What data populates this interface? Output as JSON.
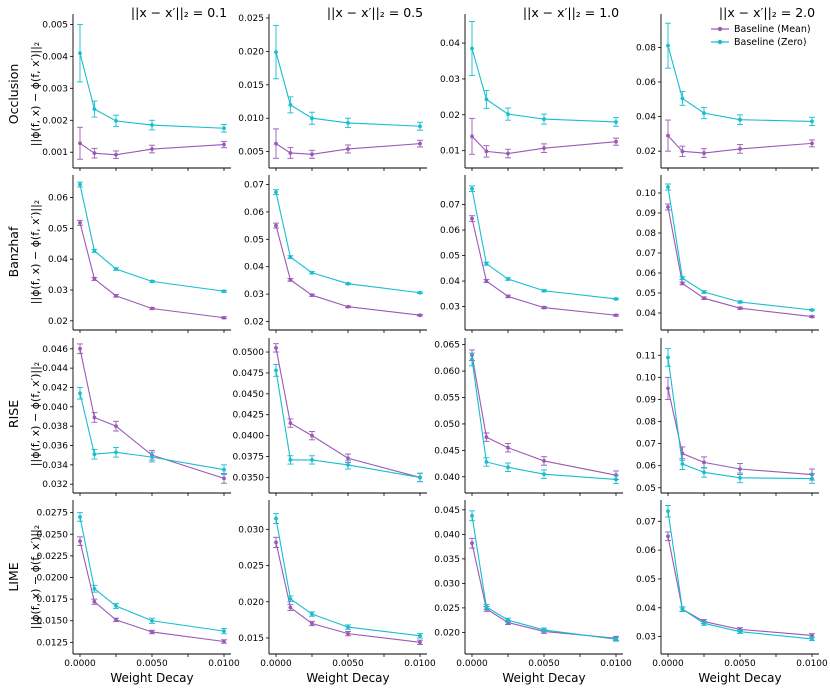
{
  "figure": {
    "colors": {
      "mean": "#9b59b6",
      "zero": "#17becf"
    },
    "legend": {
      "placement": "top-right",
      "entries": [
        "Baseline (Mean)",
        "Baseline (Zero)"
      ]
    },
    "column_titles": [
      "||x − x′||₂ = 0.1",
      "||x − x′||₂ = 0.5",
      "||x − x′||₂ = 1.0",
      "||x − x′||₂ = 2.0"
    ],
    "row_labels": [
      "Occlusion",
      "Banzhaf",
      "RISE",
      "LIME"
    ],
    "ylabel": "||ϕ(f, x) − ϕ(f, x′)||₂",
    "xlabel": "Weight Decay"
  },
  "chart_data": [
    {
      "type": "line",
      "row": "Occlusion",
      "column": "||x − x′||₂ = 0.1",
      "x": [
        0.0,
        0.001,
        0.0025,
        0.005,
        0.01
      ],
      "xticks": [
        "0.0000",
        "0.0025",
        "0.0050",
        "0.0075",
        "0.0100"
      ],
      "xlim": [
        0,
        0.01
      ],
      "ylim": [
        0.0006,
        0.0052
      ],
      "yticks": [
        "0.001",
        "0.002",
        "0.003",
        "0.004",
        "0.005"
      ],
      "series": [
        {
          "name": "Baseline (Mean)",
          "values": [
            0.00128,
            0.00097,
            0.00092,
            0.0011,
            0.00124
          ],
          "err": [
            0.0005,
            0.00015,
            0.00012,
            0.00012,
            0.0001
          ]
        },
        {
          "name": "Baseline (Zero)",
          "values": [
            0.0041,
            0.00235,
            0.00198,
            0.00185,
            0.00175
          ],
          "err": [
            0.0009,
            0.00025,
            0.00018,
            0.00015,
            0.00012
          ]
        }
      ]
    },
    {
      "type": "line",
      "row": "Occlusion",
      "column": "||x − x′||₂ = 0.5",
      "x": [
        0.0,
        0.001,
        0.0025,
        0.005,
        0.01
      ],
      "xticks": [
        "0.0000",
        "0.0025",
        "0.0050",
        "0.0075",
        "0.0100"
      ],
      "xlim": [
        0,
        0.01
      ],
      "ylim": [
        0.003,
        0.025
      ],
      "yticks": [
        "0.005",
        "0.010",
        "0.015",
        "0.020",
        "0.025"
      ],
      "series": [
        {
          "name": "Baseline (Mean)",
          "values": [
            0.0062,
            0.0048,
            0.0046,
            0.0054,
            0.0062
          ],
          "err": [
            0.0022,
            0.0008,
            0.0006,
            0.0006,
            0.0005
          ]
        },
        {
          "name": "Baseline (Zero)",
          "values": [
            0.0199,
            0.012,
            0.01,
            0.0093,
            0.0088
          ],
          "err": [
            0.004,
            0.0012,
            0.0009,
            0.0007,
            0.0006
          ]
        }
      ]
    },
    {
      "type": "line",
      "row": "Occlusion",
      "column": "||x − x′||₂ = 1.0",
      "x": [
        0.0,
        0.001,
        0.0025,
        0.005,
        0.01
      ],
      "xticks": [
        "0.0000",
        "0.0025",
        "0.0050",
        "0.0075",
        "0.0100"
      ],
      "xlim": [
        0,
        0.01
      ],
      "ylim": [
        0.006,
        0.047
      ],
      "yticks": [
        "0.01",
        "0.02",
        "0.03",
        "0.04"
      ],
      "series": [
        {
          "name": "Baseline (Mean)",
          "values": [
            0.014,
            0.0098,
            0.0092,
            0.0107,
            0.0125
          ],
          "err": [
            0.005,
            0.0016,
            0.0012,
            0.0012,
            0.001
          ]
        },
        {
          "name": "Baseline (Zero)",
          "values": [
            0.0385,
            0.0243,
            0.0202,
            0.0188,
            0.018
          ],
          "err": [
            0.0075,
            0.0025,
            0.0017,
            0.0014,
            0.0012
          ]
        }
      ]
    },
    {
      "type": "line",
      "row": "Occlusion",
      "column": "||x − x′||₂ = 2.0",
      "x": [
        0.0,
        0.001,
        0.0025,
        0.005,
        0.01
      ],
      "xticks": [
        "0.0000",
        "0.0025",
        "0.0050",
        "0.0075",
        "0.0100"
      ],
      "xlim": [
        0,
        0.01
      ],
      "ylim": [
        0.012,
        0.097
      ],
      "yticks": [
        "0.02",
        "0.04",
        "0.06",
        "0.08"
      ],
      "series": [
        {
          "name": "Baseline (Mean)",
          "values": [
            0.029,
            0.0199,
            0.0189,
            0.0213,
            0.0245
          ],
          "err": [
            0.009,
            0.003,
            0.0025,
            0.0025,
            0.002
          ]
        },
        {
          "name": "Baseline (Zero)",
          "values": [
            0.081,
            0.0505,
            0.042,
            0.0382,
            0.0372
          ],
          "err": [
            0.013,
            0.004,
            0.0032,
            0.0028,
            0.0024
          ]
        }
      ]
    },
    {
      "type": "line",
      "row": "Banzhaf",
      "column": "||x − x′||₂ = 0.1",
      "x": [
        0.0,
        0.001,
        0.0025,
        0.005,
        0.01
      ],
      "xticks": [
        "0.0000",
        "0.0025",
        "0.0050",
        "0.0075",
        "0.0100"
      ],
      "xlim": [
        0,
        0.01
      ],
      "ylim": [
        0.018,
        0.066
      ],
      "yticks": [
        "0.02",
        "0.03",
        "0.04",
        "0.05",
        "0.06"
      ],
      "series": [
        {
          "name": "Baseline (Mean)",
          "values": [
            0.0518,
            0.0336,
            0.0281,
            0.024,
            0.021
          ],
          "err": [
            0.0008,
            0.0005,
            0.0004,
            0.0003,
            0.0003
          ]
        },
        {
          "name": "Baseline (Zero)",
          "values": [
            0.0642,
            0.0427,
            0.0368,
            0.0328,
            0.0296
          ],
          "err": [
            0.0008,
            0.0005,
            0.0004,
            0.0003,
            0.0003
          ]
        }
      ]
    },
    {
      "type": "line",
      "row": "Banzhaf",
      "column": "||x − x′||₂ = 0.5",
      "x": [
        0.0,
        0.001,
        0.0025,
        0.005,
        0.01
      ],
      "xticks": [
        "0.0000",
        "0.0025",
        "0.0050",
        "0.0075",
        "0.0100"
      ],
      "xlim": [
        0,
        0.01
      ],
      "ylim": [
        0.018,
        0.072
      ],
      "yticks": [
        "0.02",
        "0.03",
        "0.04",
        "0.05",
        "0.06",
        "0.07"
      ],
      "series": [
        {
          "name": "Baseline (Mean)",
          "values": [
            0.055,
            0.0352,
            0.0296,
            0.0254,
            0.0223
          ],
          "err": [
            0.0009,
            0.0005,
            0.0004,
            0.0003,
            0.0003
          ]
        },
        {
          "name": "Baseline (Zero)",
          "values": [
            0.0672,
            0.0435,
            0.0378,
            0.0338,
            0.0305
          ],
          "err": [
            0.0009,
            0.0005,
            0.0004,
            0.0003,
            0.0003
          ]
        }
      ]
    },
    {
      "type": "line",
      "row": "Banzhaf",
      "column": "||x − x′||₂ = 1.0",
      "x": [
        0.0,
        0.001,
        0.0025,
        0.005,
        0.01
      ],
      "xticks": [
        "0.0000",
        "0.0025",
        "0.0050",
        "0.0075",
        "0.0100"
      ],
      "xlim": [
        0,
        0.01
      ],
      "ylim": [
        0.022,
        0.08
      ],
      "yticks": [
        "0.03",
        "0.04",
        "0.05",
        "0.06",
        "0.07"
      ],
      "series": [
        {
          "name": "Baseline (Mean)",
          "values": [
            0.0645,
            0.04,
            0.034,
            0.0296,
            0.0266
          ],
          "err": [
            0.0011,
            0.0006,
            0.0005,
            0.0004,
            0.0003
          ]
        },
        {
          "name": "Baseline (Zero)",
          "values": [
            0.0762,
            0.0468,
            0.0408,
            0.0362,
            0.033
          ],
          "err": [
            0.0011,
            0.0006,
            0.0005,
            0.0004,
            0.0003
          ]
        }
      ]
    },
    {
      "type": "line",
      "row": "Banzhaf",
      "column": "||x − x′||₂ = 2.0",
      "x": [
        0.0,
        0.001,
        0.0025,
        0.005,
        0.01
      ],
      "xticks": [
        "0.0000",
        "0.0025",
        "0.0050",
        "0.0075",
        "0.0100"
      ],
      "xlim": [
        0,
        0.01
      ],
      "ylim": [
        0.033,
        0.107
      ],
      "yticks": [
        "0.04",
        "0.05",
        "0.06",
        "0.07",
        "0.08",
        "0.09",
        "0.10"
      ],
      "series": [
        {
          "name": "Baseline (Mean)",
          "values": [
            0.093,
            0.0548,
            0.0474,
            0.0424,
            0.0382
          ],
          "err": [
            0.0015,
            0.0007,
            0.0006,
            0.0005,
            0.0004
          ]
        },
        {
          "name": "Baseline (Zero)",
          "values": [
            0.103,
            0.0574,
            0.0505,
            0.0455,
            0.0415
          ],
          "err": [
            0.0015,
            0.0007,
            0.0006,
            0.0005,
            0.0004
          ]
        }
      ]
    },
    {
      "type": "line",
      "row": "RISE",
      "column": "||x − x′||₂ = 0.1",
      "x": [
        0.0,
        0.001,
        0.0025,
        0.005,
        0.01
      ],
      "xticks": [
        "0.0000",
        "0.0025",
        "0.0050",
        "0.0075",
        "0.0100"
      ],
      "xlim": [
        0,
        0.01
      ],
      "ylim": [
        0.0314,
        0.0467
      ],
      "yticks": [
        "0.032",
        "0.034",
        "0.036",
        "0.038",
        "0.040",
        "0.042",
        "0.044",
        "0.046"
      ],
      "series": [
        {
          "name": "Baseline (Mean)",
          "values": [
            0.046,
            0.0389,
            0.038,
            0.035,
            0.0326
          ],
          "err": [
            0.0005,
            0.0005,
            0.0005,
            0.0005,
            0.0005
          ]
        },
        {
          "name": "Baseline (Zero)",
          "values": [
            0.0414,
            0.0351,
            0.0353,
            0.0348,
            0.0335
          ],
          "err": [
            0.0006,
            0.0005,
            0.0005,
            0.0005,
            0.0005
          ]
        }
      ]
    },
    {
      "type": "line",
      "row": "RISE",
      "column": "||x − x′||₂ = 0.5",
      "x": [
        0.0,
        0.001,
        0.0025,
        0.005,
        0.01
      ],
      "xticks": [
        "0.0000",
        "0.0025",
        "0.0050",
        "0.0075",
        "0.0100"
      ],
      "xlim": [
        0,
        0.01
      ],
      "ylim": [
        0.0335,
        0.0512
      ],
      "yticks": [
        "0.0350",
        "0.0375",
        "0.0400",
        "0.0425",
        "0.0450",
        "0.0475",
        "0.0500"
      ],
      "series": [
        {
          "name": "Baseline (Mean)",
          "values": [
            0.0505,
            0.0415,
            0.04,
            0.0373,
            0.035
          ],
          "err": [
            0.0005,
            0.0005,
            0.0005,
            0.0005,
            0.0005
          ]
        },
        {
          "name": "Baseline (Zero)",
          "values": [
            0.0478,
            0.0371,
            0.0371,
            0.0365,
            0.035
          ],
          "err": [
            0.0007,
            0.0005,
            0.0005,
            0.0005,
            0.0005
          ]
        }
      ]
    },
    {
      "type": "line",
      "row": "RISE",
      "column": "||x − x′||₂ = 1.0",
      "x": [
        0.0,
        0.001,
        0.0025,
        0.005,
        0.01
      ],
      "xticks": [
        "0.0000",
        "0.0025",
        "0.0050",
        "0.0075",
        "0.0100"
      ],
      "xlim": [
        0,
        0.01
      ],
      "ylim": [
        0.0375,
        0.0655
      ],
      "yticks": [
        "0.040",
        "0.045",
        "0.050",
        "0.055",
        "0.060",
        "0.065"
      ],
      "series": [
        {
          "name": "Baseline (Mean)",
          "values": [
            0.063,
            0.0475,
            0.0455,
            0.043,
            0.0403
          ],
          "err": [
            0.001,
            0.0008,
            0.0008,
            0.0008,
            0.0008
          ]
        },
        {
          "name": "Baseline (Zero)",
          "values": [
            0.0622,
            0.0428,
            0.0418,
            0.0405,
            0.0395
          ],
          "err": [
            0.0012,
            0.0008,
            0.0008,
            0.0008,
            0.0008
          ]
        }
      ]
    },
    {
      "type": "line",
      "row": "RISE",
      "column": "||x − x′||₂ = 2.0",
      "x": [
        0.0,
        0.001,
        0.0025,
        0.005,
        0.01
      ],
      "xticks": [
        "0.0000",
        "0.0025",
        "0.0050",
        "0.0075",
        "0.0100"
      ],
      "xlim": [
        0,
        0.01
      ],
      "ylim": [
        0.049,
        0.116
      ],
      "yticks": [
        "0.05",
        "0.06",
        "0.07",
        "0.08",
        "0.09",
        "0.10",
        "0.11"
      ],
      "series": [
        {
          "name": "Baseline (Mean)",
          "values": [
            0.095,
            0.0655,
            0.0615,
            0.0585,
            0.056
          ],
          "err": [
            0.005,
            0.003,
            0.0025,
            0.0025,
            0.0025
          ]
        },
        {
          "name": "Baseline (Zero)",
          "values": [
            0.109,
            0.0608,
            0.057,
            0.0545,
            0.0542
          ],
          "err": [
            0.004,
            0.0025,
            0.0022,
            0.0022,
            0.0022
          ]
        }
      ]
    },
    {
      "type": "line",
      "row": "LIME",
      "column": "||x − x′||₂ = 0.1",
      "x": [
        0.0,
        0.001,
        0.0025,
        0.005,
        0.01
      ],
      "xticks": [
        "0.0000",
        "0.0025",
        "0.0050",
        "0.0075",
        "0.0100"
      ],
      "xlim": [
        0,
        0.01
      ],
      "ylim": [
        0.0115,
        0.0285
      ],
      "yticks": [
        "0.0125",
        "0.0150",
        "0.0175",
        "0.0200",
        "0.0225",
        "0.0250",
        "0.0275"
      ],
      "series": [
        {
          "name": "Baseline (Mean)",
          "values": [
            0.0242,
            0.0172,
            0.0151,
            0.0137,
            0.0126
          ],
          "err": [
            0.0005,
            0.0003,
            0.0002,
            0.0002,
            0.0002
          ]
        },
        {
          "name": "Baseline (Zero)",
          "values": [
            0.027,
            0.0187,
            0.0167,
            0.015,
            0.0138
          ],
          "err": [
            0.0005,
            0.0004,
            0.0003,
            0.0003,
            0.0003
          ]
        }
      ]
    },
    {
      "type": "line",
      "row": "LIME",
      "column": "||x − x′||₂ = 0.5",
      "x": [
        0.0,
        0.001,
        0.0025,
        0.005,
        0.01
      ],
      "xticks": [
        "0.0000",
        "0.0025",
        "0.0050",
        "0.0075",
        "0.0100"
      ],
      "xlim": [
        0,
        0.01
      ],
      "ylim": [
        0.0132,
        0.0335
      ],
      "yticks": [
        "0.015",
        "0.020",
        "0.025",
        "0.030"
      ],
      "series": [
        {
          "name": "Baseline (Mean)",
          "values": [
            0.0282,
            0.0192,
            0.017,
            0.0156,
            0.0144
          ],
          "err": [
            0.0007,
            0.0004,
            0.0003,
            0.0003,
            0.0003
          ]
        },
        {
          "name": "Baseline (Zero)",
          "values": [
            0.0315,
            0.0204,
            0.0183,
            0.0165,
            0.0153
          ],
          "err": [
            0.0007,
            0.0004,
            0.0003,
            0.0003,
            0.0003
          ]
        }
      ]
    },
    {
      "type": "line",
      "row": "LIME",
      "column": "||x − x′||₂ = 1.0",
      "x": [
        0.0,
        0.001,
        0.0025,
        0.005,
        0.01
      ],
      "xticks": [
        "0.0000",
        "0.0025",
        "0.0050",
        "0.0075",
        "0.0100"
      ],
      "xlim": [
        0,
        0.01
      ],
      "ylim": [
        0.0162,
        0.0462
      ],
      "yticks": [
        "0.020",
        "0.025",
        "0.030",
        "0.035",
        "0.040",
        "0.045"
      ],
      "series": [
        {
          "name": "Baseline (Mean)",
          "values": [
            0.0382,
            0.0248,
            0.022,
            0.0202,
            0.0188
          ],
          "err": [
            0.001,
            0.0005,
            0.0004,
            0.0004,
            0.0004
          ]
        },
        {
          "name": "Baseline (Zero)",
          "values": [
            0.0438,
            0.0252,
            0.0225,
            0.0205,
            0.0186
          ],
          "err": [
            0.001,
            0.0005,
            0.0004,
            0.0004,
            0.0004
          ]
        }
      ]
    },
    {
      "type": "line",
      "row": "LIME",
      "column": "||x − x′||₂ = 2.0",
      "x": [
        0.0,
        0.001,
        0.0025,
        0.005,
        0.01
      ],
      "xticks": [
        "0.0000",
        "0.0025",
        "0.0050",
        "0.0075",
        "0.0100"
      ],
      "xlim": [
        0,
        0.01
      ],
      "ylim": [
        0.025,
        0.076
      ],
      "yticks": [
        "0.03",
        "0.04",
        "0.05",
        "0.06",
        "0.07"
      ],
      "series": [
        {
          "name": "Baseline (Mean)",
          "values": [
            0.0648,
            0.0395,
            0.0352,
            0.0325,
            0.0304
          ],
          "err": [
            0.0015,
            0.0008,
            0.0007,
            0.0006,
            0.0006
          ]
        },
        {
          "name": "Baseline (Zero)",
          "values": [
            0.0735,
            0.0395,
            0.0346,
            0.0317,
            0.0292
          ],
          "err": [
            0.002,
            0.0008,
            0.0007,
            0.0006,
            0.0006
          ]
        }
      ]
    }
  ]
}
